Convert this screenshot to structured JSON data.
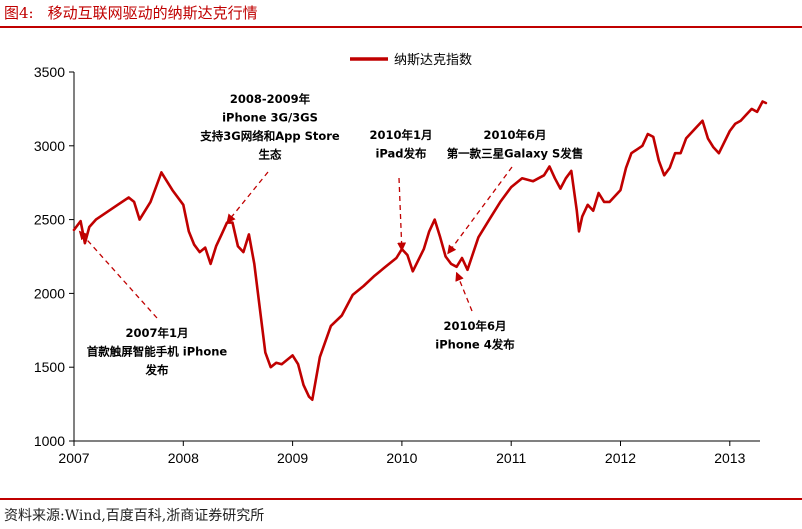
{
  "figure": {
    "label": "图4:",
    "title": "移动互联网驱动的纳斯达克行情",
    "source": "资料来源:Wind,百度百科,浙商证券研究所"
  },
  "chart_data": {
    "type": "line",
    "title": "移动互联网驱动的纳斯达克行情",
    "xlabel": "",
    "ylabel": "",
    "x_range": [
      2007.0,
      2013.33
    ],
    "ylim": [
      1000,
      3500
    ],
    "y_ticks": [
      1000,
      1500,
      2000,
      2500,
      3000,
      3500
    ],
    "y_tick_labels": [
      "1000",
      "1500",
      "2000",
      "2500",
      "3000",
      "3500"
    ],
    "x_ticks": [
      2007,
      2008,
      2009,
      2010,
      2011,
      2012,
      2013
    ],
    "x_tick_labels": [
      "2007",
      "2008",
      "2009",
      "2010",
      "2011",
      "2012",
      "2013"
    ],
    "grid": false,
    "legend_position": "top-center",
    "line_color": "#c00000",
    "series": [
      {
        "name": "纳斯达克指数",
        "x": [
          2007.0,
          2007.06,
          2007.1,
          2007.14,
          2007.2,
          2007.3,
          2007.4,
          2007.5,
          2007.55,
          2007.6,
          2007.7,
          2007.75,
          2007.8,
          2007.9,
          2008.0,
          2008.05,
          2008.1,
          2008.15,
          2008.2,
          2008.25,
          2008.3,
          2008.35,
          2008.4,
          2008.45,
          2008.5,
          2008.55,
          2008.6,
          2008.65,
          2008.7,
          2008.75,
          2008.8,
          2008.85,
          2008.9,
          2009.0,
          2009.05,
          2009.1,
          2009.15,
          2009.18,
          2009.25,
          2009.35,
          2009.45,
          2009.55,
          2009.65,
          2009.75,
          2009.85,
          2009.95,
          2010.0,
          2010.05,
          2010.1,
          2010.2,
          2010.25,
          2010.3,
          2010.35,
          2010.4,
          2010.45,
          2010.5,
          2010.55,
          2010.6,
          2010.7,
          2010.8,
          2010.9,
          2011.0,
          2011.1,
          2011.2,
          2011.3,
          2011.35,
          2011.4,
          2011.45,
          2011.5,
          2011.55,
          2011.6,
          2011.62,
          2011.65,
          2011.7,
          2011.75,
          2011.8,
          2011.85,
          2011.9,
          2012.0,
          2012.05,
          2012.1,
          2012.2,
          2012.25,
          2012.3,
          2012.35,
          2012.4,
          2012.45,
          2012.5,
          2012.55,
          2012.6,
          2012.7,
          2012.75,
          2012.8,
          2012.85,
          2012.9,
          2013.0,
          2013.05,
          2013.1,
          2013.15,
          2013.2,
          2013.25,
          2013.3,
          2013.33
        ],
        "values": [
          2430,
          2490,
          2340,
          2450,
          2500,
          2550,
          2600,
          2650,
          2620,
          2500,
          2620,
          2720,
          2820,
          2700,
          2600,
          2420,
          2330,
          2280,
          2310,
          2200,
          2320,
          2400,
          2480,
          2480,
          2320,
          2280,
          2400,
          2200,
          1900,
          1600,
          1500,
          1530,
          1520,
          1580,
          1520,
          1380,
          1300,
          1280,
          1570,
          1780,
          1850,
          1990,
          2050,
          2120,
          2180,
          2240,
          2300,
          2260,
          2150,
          2300,
          2420,
          2500,
          2380,
          2250,
          2200,
          2180,
          2240,
          2160,
          2380,
          2500,
          2620,
          2720,
          2780,
          2760,
          2800,
          2860,
          2780,
          2710,
          2780,
          2830,
          2560,
          2420,
          2520,
          2600,
          2560,
          2680,
          2620,
          2620,
          2700,
          2850,
          2950,
          3000,
          3080,
          3060,
          2900,
          2800,
          2850,
          2950,
          2950,
          3050,
          3130,
          3170,
          3050,
          2990,
          2950,
          3100,
          3150,
          3170,
          3210,
          3250,
          3230,
          3300,
          3290
        ]
      }
    ],
    "annotations": [
      {
        "id": "ann-2007",
        "lines": [
          "2007年1月",
          "首款触屏智能手机 iPhone",
          "发布"
        ],
        "target": [
          2007.05,
          2420
        ]
      },
      {
        "id": "ann-2008",
        "lines": [
          "2008-2009年",
          "iPhone 3G/3GS",
          "支持3G网络和App Store",
          "生态"
        ],
        "target": [
          2008.4,
          2480
        ]
      },
      {
        "id": "ann-2010-jan",
        "lines": [
          "2010年1月",
          "iPad发布"
        ],
        "target": [
          2010.0,
          2290
        ]
      },
      {
        "id": "ann-2010-jun-galaxy",
        "lines": [
          "2010年6月",
          "第一款三星Galaxy S发售"
        ],
        "target": [
          2010.42,
          2270
        ]
      },
      {
        "id": "ann-2010-jun-iphone4",
        "lines": [
          "2010年6月",
          "iPhone 4发布"
        ],
        "target": [
          2010.5,
          2140
        ]
      }
    ]
  }
}
